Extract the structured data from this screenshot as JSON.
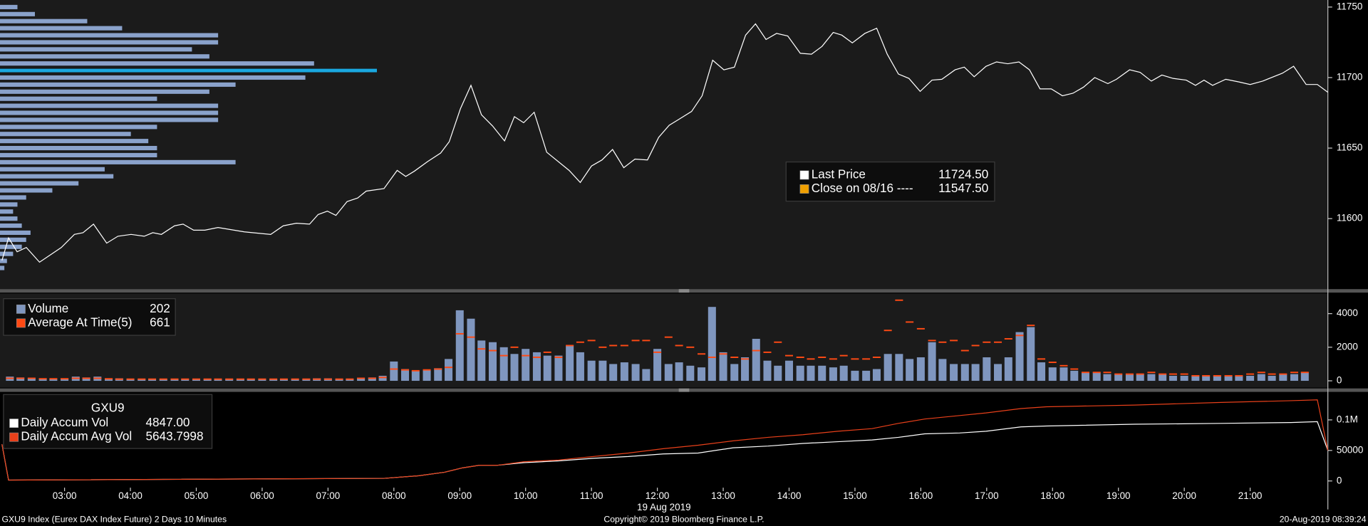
{
  "chart_data": [
    {
      "type": "line",
      "xlim": [
        2.02,
        22.18
      ],
      "ylim": [
        11550,
        11755
      ],
      "yticks": [
        11600,
        11650,
        11700,
        11750
      ],
      "series": [
        {
          "name": "Last Price",
          "color": "#ffffff",
          "legend_value": "11724.50",
          "x": [
            2.05,
            2.15,
            2.28,
            2.42,
            2.62,
            2.95,
            3.15,
            3.28,
            3.44,
            3.64,
            3.81,
            4.01,
            4.21,
            4.34,
            4.47,
            4.67,
            4.8,
            4.96,
            5.13,
            5.33,
            5.73,
            6.13,
            6.32,
            6.52,
            6.72,
            6.85,
            6.99,
            7.12,
            7.29,
            7.45,
            7.58,
            7.85,
            8.05,
            8.18,
            8.31,
            8.51,
            8.71,
            8.84,
            9.01,
            9.17,
            9.33,
            9.5,
            9.68,
            9.83,
            9.97,
            10.13,
            10.32,
            10.66,
            10.83,
            11.0,
            11.16,
            11.32,
            11.49,
            11.66,
            11.85,
            12.02,
            12.18,
            12.31,
            12.52,
            12.68,
            12.84,
            13.01,
            13.17,
            13.34,
            13.49,
            13.65,
            13.81,
            13.98,
            14.17,
            14.34,
            14.5,
            14.67,
            14.8,
            14.96,
            15.15,
            15.33,
            15.49,
            15.66,
            15.82,
            15.99,
            16.17,
            16.32,
            16.52,
            16.66,
            16.81,
            16.99,
            17.15,
            17.32,
            17.49,
            17.65,
            17.81,
            17.98,
            18.15,
            18.31,
            18.47,
            18.64,
            18.84,
            18.97,
            19.17,
            19.33,
            19.5,
            19.66,
            19.83,
            20.03,
            20.17,
            20.3,
            20.43,
            20.63,
            20.83,
            21.0,
            21.19,
            21.49,
            21.66,
            21.85,
            22.02,
            22.18
          ],
          "values": [
            11570.3,
            11586.3,
            11576.5,
            11579.5,
            11569.1,
            11579.5,
            11588.8,
            11590.0,
            11596.1,
            11582.6,
            11587.5,
            11588.8,
            11587.5,
            11590.0,
            11588.8,
            11594.9,
            11596.1,
            11591.8,
            11591.8,
            11593.7,
            11590.6,
            11588.8,
            11594.9,
            11596.7,
            11596.1,
            11602.9,
            11605.3,
            11602.3,
            11612.1,
            11614.6,
            11619.5,
            11621.3,
            11634.2,
            11629.9,
            11633.6,
            11640.4,
            11646.5,
            11654.5,
            11677.9,
            11694.5,
            11673.6,
            11665.6,
            11655.1,
            11672.3,
            11668.0,
            11675.4,
            11647.1,
            11634.2,
            11625.6,
            11637.3,
            11641.6,
            11649.0,
            11636.1,
            11642.2,
            11641.6,
            11657.6,
            11666.2,
            11669.9,
            11676.0,
            11687.1,
            11712.3,
            11705.5,
            11707.4,
            11730.1,
            11738.1,
            11727.0,
            11731.3,
            11729.5,
            11717.2,
            11716.6,
            11722.1,
            11732.0,
            11730.1,
            11724.6,
            11731.3,
            11735.0,
            11716.6,
            11702.5,
            11699.4,
            11690.2,
            11698.2,
            11698.8,
            11705.5,
            11707.4,
            11700.6,
            11708.0,
            11711.1,
            11709.8,
            11711.1,
            11705.5,
            11692.0,
            11692.0,
            11687.1,
            11688.9,
            11693.2,
            11700.0,
            11695.7,
            11698.8,
            11705.5,
            11703.7,
            11697.5,
            11701.8,
            11699.4,
            11698.2,
            11694.5,
            11698.2,
            11694.5,
            11698.8,
            11696.9,
            11695.1,
            11697.5,
            11703.1,
            11708.0,
            11695.1,
            11695.1,
            11689.6
          ]
        }
      ],
      "reference": {
        "name": "Close on 08/16 ----",
        "legend_value": "11547.50",
        "color": "#f0a000"
      },
      "profile": {
        "color": "#8aa2cb",
        "highlight_color": "#1aa8e0",
        "point_of_control": 11705,
        "levels": [
          11750,
          11745,
          11740,
          11735,
          11730,
          11725,
          11720,
          11715,
          11710,
          11705,
          11700,
          11695,
          11690,
          11685,
          11680,
          11675,
          11670,
          11665,
          11660,
          11655,
          11650,
          11645,
          11640,
          11635,
          11630,
          11625,
          11620,
          11615,
          11610,
          11605,
          11600,
          11595,
          11590,
          11585,
          11580,
          11575,
          11570,
          11565
        ],
        "values": [
          20,
          40,
          100,
          140,
          250,
          250,
          220,
          240,
          360,
          432,
          350,
          270,
          240,
          180,
          250,
          250,
          250,
          180,
          150,
          170,
          180,
          180,
          270,
          120,
          130,
          90,
          60,
          30,
          20,
          15,
          20,
          25,
          35,
          30,
          25,
          15,
          8,
          5
        ]
      }
    },
    {
      "type": "bar",
      "xlim": [
        2.02,
        22.18
      ],
      "ylim": [
        -400,
        5200
      ],
      "yticks": [
        0,
        2000,
        4000
      ],
      "x": [
        2.17,
        2.33,
        2.5,
        2.67,
        2.83,
        3,
        3.17,
        3.33,
        3.5,
        3.67,
        3.83,
        4,
        4.17,
        4.33,
        4.5,
        4.67,
        4.83,
        5,
        5.17,
        5.33,
        5.5,
        5.67,
        5.83,
        6,
        6.17,
        6.33,
        6.5,
        6.67,
        6.83,
        7,
        7.17,
        7.33,
        7.5,
        7.67,
        7.83,
        8,
        8.17,
        8.33,
        8.5,
        8.67,
        8.83,
        9,
        9.17,
        9.33,
        9.5,
        9.67,
        9.83,
        10,
        10.17,
        10.33,
        10.5,
        10.67,
        10.83,
        11,
        11.17,
        11.33,
        11.5,
        11.67,
        11.83,
        12,
        12.17,
        12.33,
        12.5,
        12.67,
        12.83,
        13,
        13.17,
        13.33,
        13.5,
        13.67,
        13.83,
        14,
        14.17,
        14.33,
        14.5,
        14.67,
        14.83,
        15,
        15.17,
        15.33,
        15.5,
        15.67,
        15.83,
        16,
        16.17,
        16.33,
        16.5,
        16.67,
        16.83,
        17,
        17.17,
        17.33,
        17.5,
        17.67,
        17.83,
        18,
        18.17,
        18.33,
        18.5,
        18.67,
        18.83,
        19,
        19.17,
        19.33,
        19.5,
        19.67,
        19.83,
        20,
        20.17,
        20.33,
        20.5,
        20.67,
        20.83,
        21,
        21.17,
        21.33,
        21.5,
        21.67,
        21.83
      ],
      "series": [
        {
          "name": "Volume",
          "color": "#7f96bf",
          "legend_value": 202,
          "values": [
            250,
            200,
            150,
            150,
            100,
            150,
            250,
            200,
            250,
            150,
            150,
            100,
            100,
            100,
            100,
            100,
            100,
            100,
            100,
            100,
            100,
            100,
            100,
            100,
            100,
            100,
            100,
            100,
            150,
            150,
            100,
            100,
            150,
            200,
            300,
            1150,
            700,
            600,
            650,
            750,
            1300,
            4200,
            3700,
            2400,
            2300,
            2000,
            1600,
            1900,
            1700,
            1500,
            1500,
            2100,
            1700,
            1200,
            1200,
            1000,
            1100,
            1000,
            700,
            1900,
            1000,
            1100,
            900,
            800,
            4400,
            1700,
            1000,
            1400,
            2500,
            1200,
            900,
            1200,
            900,
            900,
            900,
            800,
            900,
            600,
            600,
            700,
            1600,
            1600,
            1300,
            1400,
            2300,
            1300,
            1000,
            1000,
            1000,
            1400,
            1000,
            1400,
            2900,
            3200,
            1100,
            800,
            800,
            600,
            500,
            500,
            400,
            400,
            400,
            400,
            400,
            400,
            300,
            300,
            300,
            300,
            300,
            300,
            300,
            300,
            400,
            300,
            400,
            400,
            500
          ]
        },
        {
          "name": "Average At Time(5)",
          "color": "#ff4a14",
          "legend_value": 661,
          "marker": "dash",
          "values": [
            150,
            150,
            150,
            120,
            120,
            120,
            150,
            150,
            150,
            120,
            100,
            100,
            100,
            100,
            100,
            100,
            100,
            100,
            100,
            100,
            100,
            100,
            100,
            100,
            100,
            100,
            100,
            100,
            100,
            100,
            100,
            100,
            150,
            150,
            200,
            700,
            650,
            600,
            650,
            700,
            800,
            2800,
            2600,
            1900,
            1800,
            1500,
            2000,
            1500,
            1400,
            1700,
            1400,
            2100,
            2300,
            2400,
            2000,
            2100,
            2100,
            2400,
            2400,
            1700,
            2600,
            2100,
            2000,
            1600,
            1400,
            1600,
            1400,
            1300,
            1800,
            1700,
            2300,
            1500,
            1400,
            1300,
            1400,
            1300,
            1500,
            1300,
            1300,
            1400,
            3000,
            4800,
            3500,
            3100,
            2400,
            2300,
            2400,
            1800,
            2100,
            2300,
            2300,
            2500,
            2700,
            3300,
            1300,
            1100,
            900,
            700,
            500,
            500,
            500,
            400,
            400,
            400,
            500,
            400,
            400,
            400,
            300,
            300,
            300,
            300,
            300,
            400,
            500,
            400,
            400,
            500,
            500
          ]
        }
      ]
    },
    {
      "type": "line",
      "title": "GXU9",
      "xlim": [
        2.02,
        22.18
      ],
      "ylim": [
        -11000,
        143000
      ],
      "yticks": [
        0,
        50000,
        {
          "value": 100000,
          "label": "0.1M"
        }
      ],
      "xticks": [
        {
          "value": 3,
          "label": "03:00"
        },
        {
          "value": 4,
          "label": "04:00"
        },
        {
          "value": 5,
          "label": "05:00"
        },
        {
          "value": 6,
          "label": "06:00"
        },
        {
          "value": 7,
          "label": "07:00"
        },
        {
          "value": 8,
          "label": "08:00"
        },
        {
          "value": 9,
          "label": "09:00"
        },
        {
          "value": 10,
          "label": "10:00"
        },
        {
          "value": 11,
          "label": "11:00"
        },
        {
          "value": 12,
          "label": "12:00"
        },
        {
          "value": 13,
          "label": "13:00"
        },
        {
          "value": 14,
          "label": "14:00"
        },
        {
          "value": 15,
          "label": "15:00"
        },
        {
          "value": 16,
          "label": "16:00"
        },
        {
          "value": 17,
          "label": "17:00"
        },
        {
          "value": 18,
          "label": "18:00"
        },
        {
          "value": 19,
          "label": "19:00"
        },
        {
          "value": 20,
          "label": "20:00"
        },
        {
          "value": 21,
          "label": "21:00"
        }
      ],
      "xlabel": "19 Aug 2019",
      "x": [
        2.05,
        2.15,
        7.85,
        8.38,
        8.77,
        9.04,
        9.3,
        9.57,
        9.97,
        10.5,
        11.03,
        11.56,
        12.09,
        12.62,
        13.15,
        13.68,
        14.21,
        14.74,
        15.26,
        15.66,
        16.06,
        16.59,
        16.99,
        17.52,
        17.91,
        19.24,
        20.56,
        21.62,
        22.02,
        22.18
      ],
      "series": [
        {
          "name": "Daily Accum Vol",
          "color": "#ffffff",
          "legend_value": "4847.00",
          "values": [
            60000,
            1430,
            4290,
            8570,
            14290,
            21430,
            25710,
            25710,
            30000,
            32860,
            37140,
            40000,
            44290,
            45710,
            54290,
            57140,
            61430,
            64290,
            67140,
            71430,
            77140,
            78570,
            81430,
            88570,
            90000,
            92860,
            94290,
            95710,
            97140,
            50000
          ]
        },
        {
          "name": "Daily Accum Avg Vol",
          "color": "#e8401a",
          "legend_value": "5643.7998",
          "values": [
            60000,
            1430,
            4290,
            8570,
            14290,
            21430,
            25710,
            25710,
            31430,
            34290,
            40000,
            45710,
            52860,
            58570,
            65710,
            71430,
            75710,
            81430,
            85710,
            94290,
            101430,
            107140,
            111430,
            118570,
            121430,
            124290,
            128570,
            131430,
            132860,
            50000
          ]
        }
      ]
    }
  ],
  "footer": {
    "left": "GXU9 Index (Eurex DAX Index Future) 2 Days 10 Minutes",
    "center": "Copyright© 2019 Bloomberg Finance L.P.",
    "right": "20-Aug-2019 08:39:24"
  }
}
